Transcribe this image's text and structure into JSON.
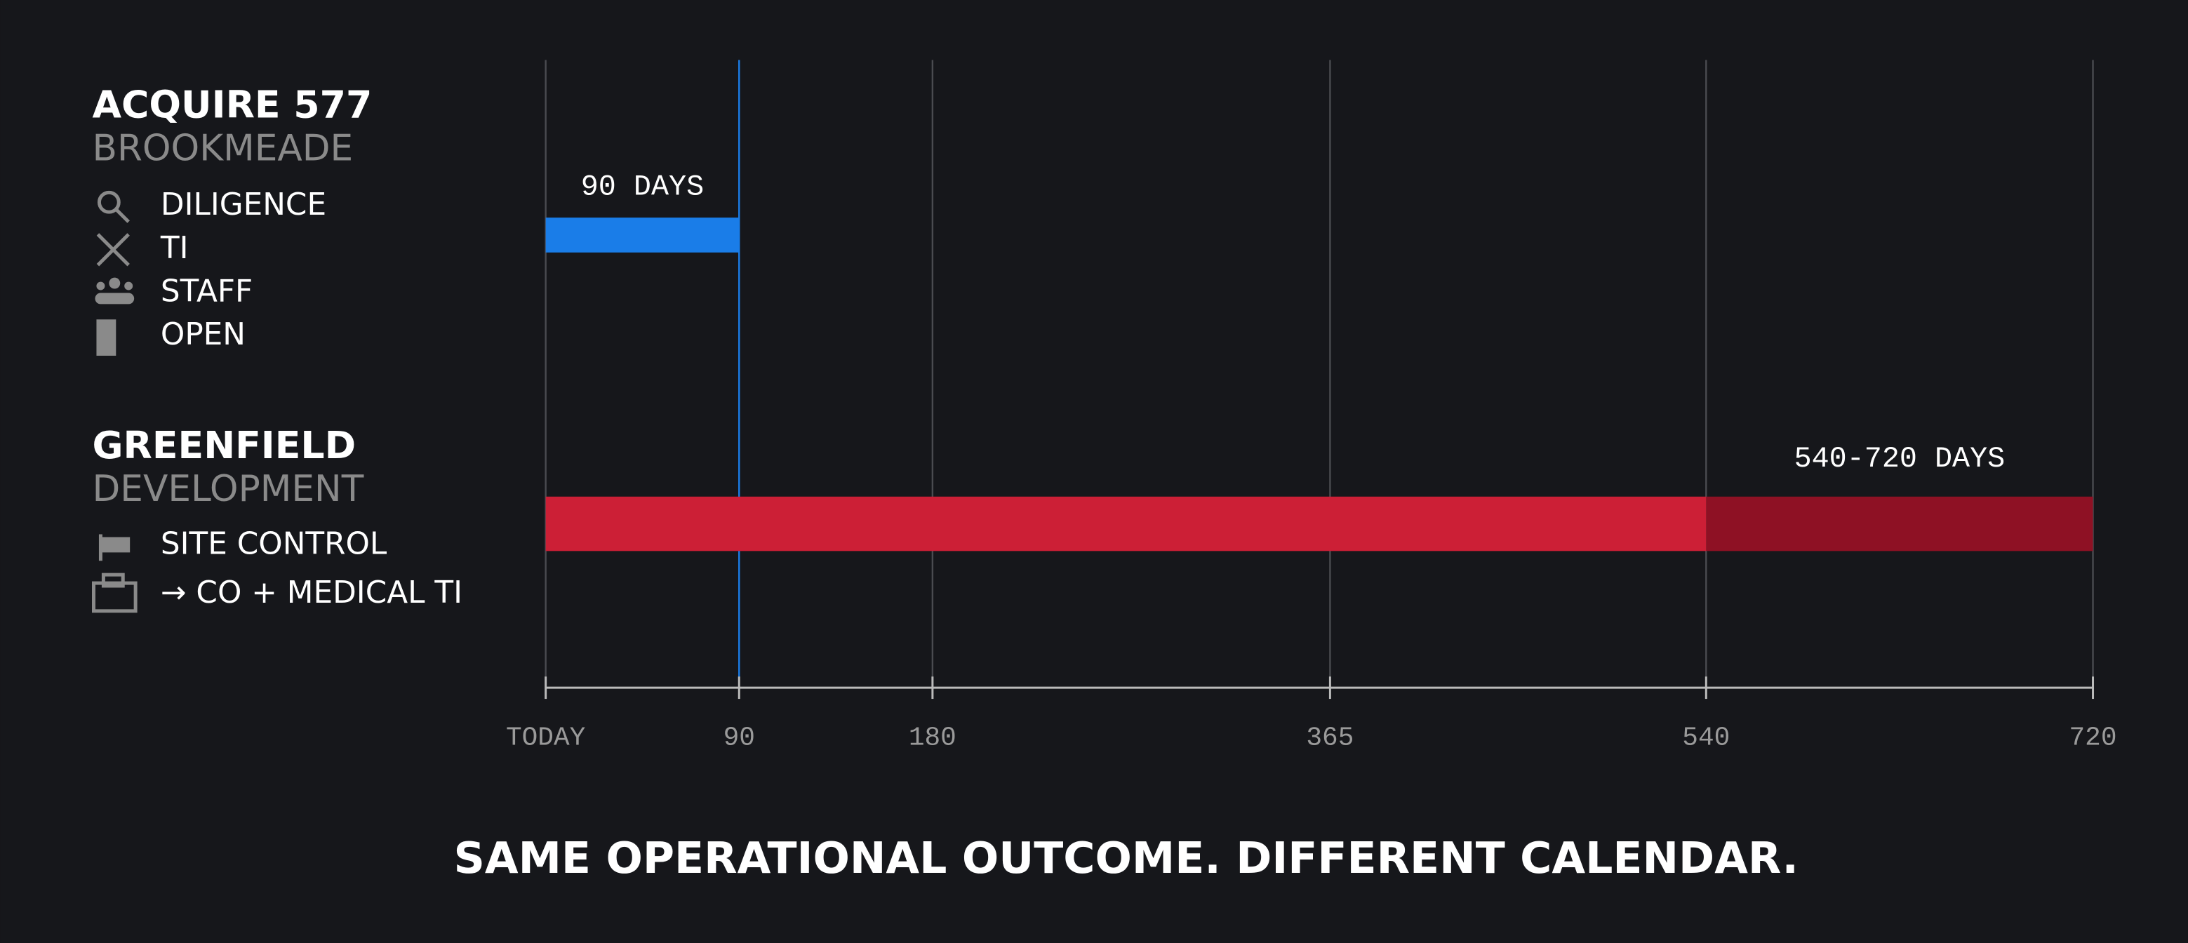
{
  "chart_data": {
    "type": "bar",
    "title": "SAME OPERATIONAL OUTCOME. DIFFERENT CALENDAR.",
    "groups": [
      {
        "title": "ACQUIRE 577",
        "subtitle": "BROOKMEADE",
        "steps": [
          "DILIGENCE",
          "TI",
          "STAFF",
          "OPEN"
        ],
        "start": 0,
        "end": 90,
        "label": "90 DAYS",
        "color": "#1a7de8"
      },
      {
        "title": "GREENFIELD",
        "subtitle": "DEVELOPMENT",
        "steps": [
          "SITE CONTROL",
          "→ CO + MEDICAL TI"
        ],
        "start": 0,
        "end": 540,
        "extended_end": 720,
        "label": "540-720 DAYS",
        "color": "#cc1f36",
        "extended_color": "#8e1124"
      }
    ],
    "xlim": [
      0,
      720
    ],
    "xticks": [
      {
        "value": 0,
        "label": "TODAY"
      },
      90,
      180,
      365,
      540,
      720
    ],
    "grid": true
  }
}
